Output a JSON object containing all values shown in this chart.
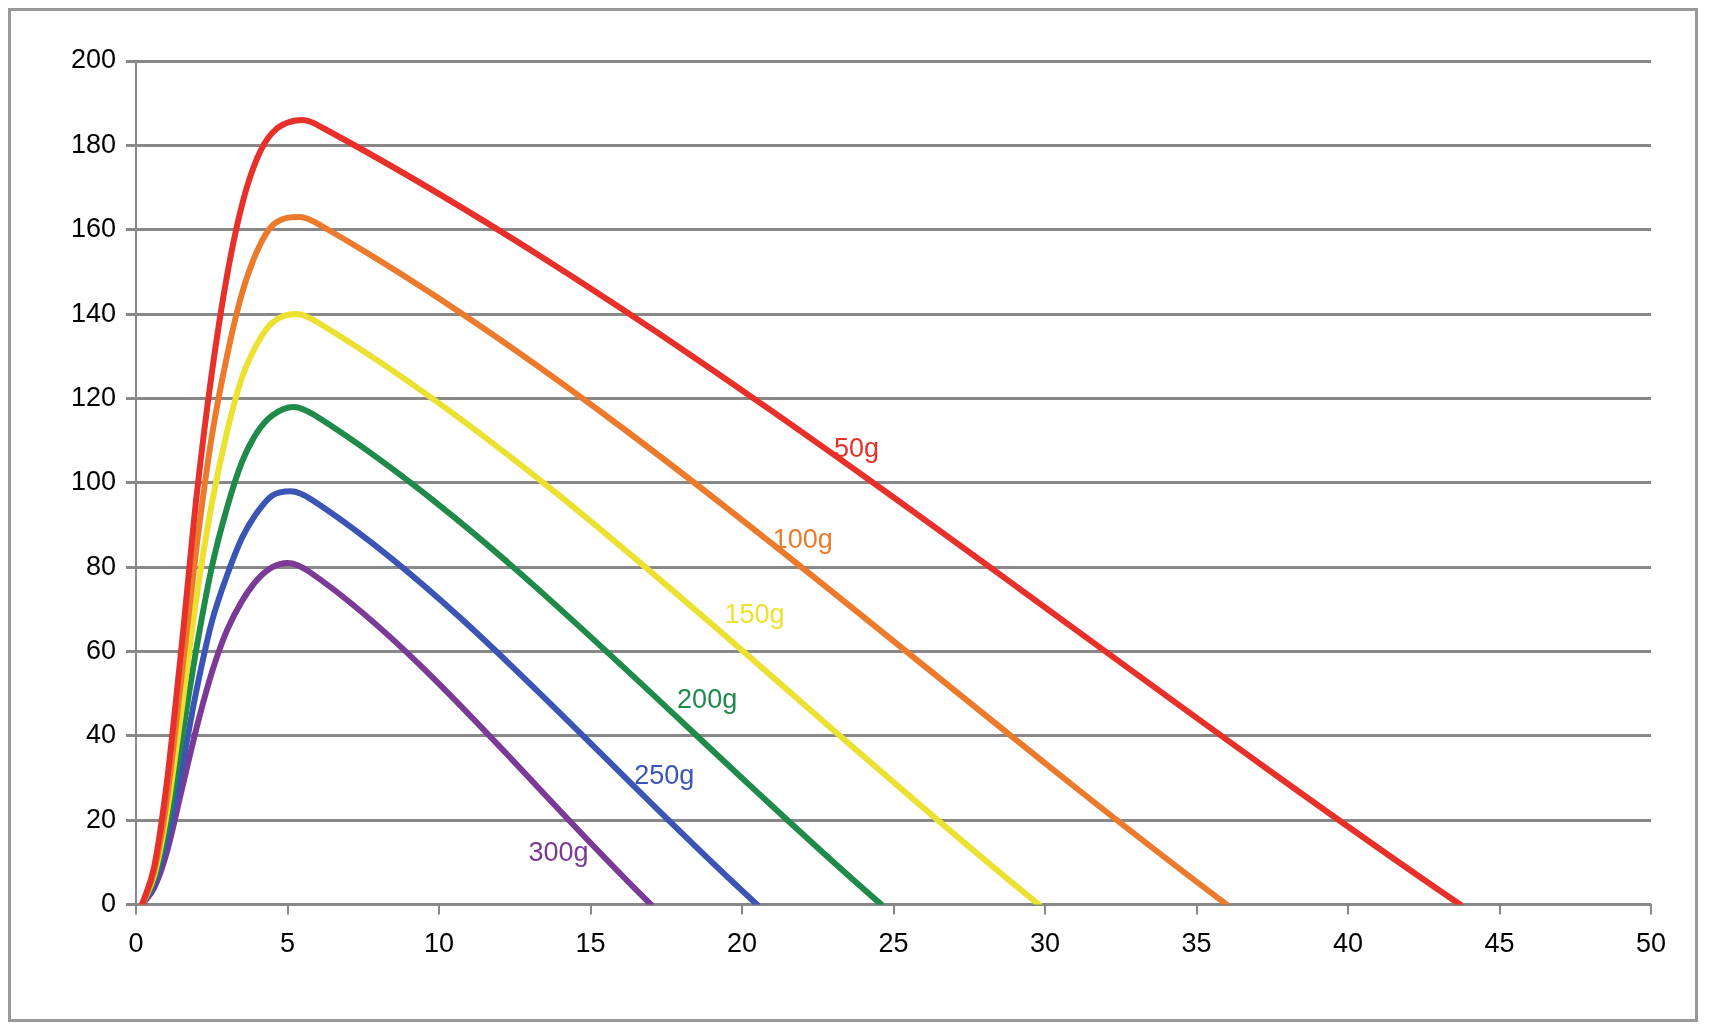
{
  "chart_data": {
    "type": "line",
    "xlim": [
      0,
      50
    ],
    "xticks": [
      0,
      5,
      10,
      15,
      20,
      25,
      30,
      35,
      40,
      45,
      50
    ],
    "ylim": [
      0,
      200
    ],
    "yticks": [
      0,
      20,
      40,
      60,
      80,
      100,
      120,
      140,
      160,
      180,
      200
    ],
    "grid": "y",
    "legend": false,
    "marker": "none",
    "line_style": "solid",
    "series": [
      {
        "name": "50g",
        "color": "#e8302a",
        "x": [
          0.2,
          0.6,
          1,
          1.5,
          2,
          2.5,
          3,
          3.5,
          4,
          4.5,
          5.5,
          6.2,
          43.7
        ],
        "values": [
          0,
          9,
          28,
          61,
          97,
          126,
          149,
          166,
          177,
          183,
          186,
          184,
          0
        ]
      },
      {
        "name": "100g",
        "color": "#ec7a2c",
        "x": [
          0.2,
          0.6,
          1,
          1.5,
          2,
          2.5,
          3,
          3.5,
          4,
          4.5,
          5.4,
          6.1,
          36.0
        ],
        "values": [
          0,
          8,
          24,
          54,
          85,
          111,
          130,
          145,
          155,
          161,
          163,
          161,
          0
        ]
      },
      {
        "name": "150g",
        "color": "#ece030",
        "x": [
          0.2,
          0.6,
          1,
          1.5,
          2,
          2.5,
          3,
          3.5,
          4,
          4.5,
          5.3,
          6.0,
          29.8
        ],
        "values": [
          0,
          7,
          21,
          46,
          73,
          95,
          112,
          125,
          133,
          138,
          140,
          138,
          0
        ]
      },
      {
        "name": "200g",
        "color": "#1f8a4a",
        "x": [
          0.2,
          0.6,
          1,
          1.5,
          2,
          2.5,
          3,
          3.5,
          4,
          4.5,
          5.2,
          5.9,
          24.6
        ],
        "values": [
          0,
          6,
          18,
          39,
          61,
          80,
          94,
          105,
          112,
          116,
          118,
          116,
          0
        ]
      },
      {
        "name": "250g",
        "color": "#3a55b4",
        "x": [
          0.2,
          0.6,
          1,
          1.5,
          2,
          2.5,
          3,
          3.5,
          4,
          4.5,
          5.1,
          5.8,
          20.5
        ],
        "values": [
          0,
          5,
          15,
          32,
          51,
          67,
          78,
          87,
          93,
          97,
          98,
          96,
          0
        ]
      },
      {
        "name": "300g",
        "color": "#7a3a96",
        "x": [
          0.2,
          0.6,
          1,
          1.5,
          2,
          2.5,
          3,
          3.5,
          4,
          4.5,
          5.0,
          5.7,
          17.0
        ],
        "values": [
          0,
          4,
          12,
          27,
          42,
          55,
          65,
          72,
          77,
          80,
          81,
          79,
          0
        ]
      }
    ]
  }
}
